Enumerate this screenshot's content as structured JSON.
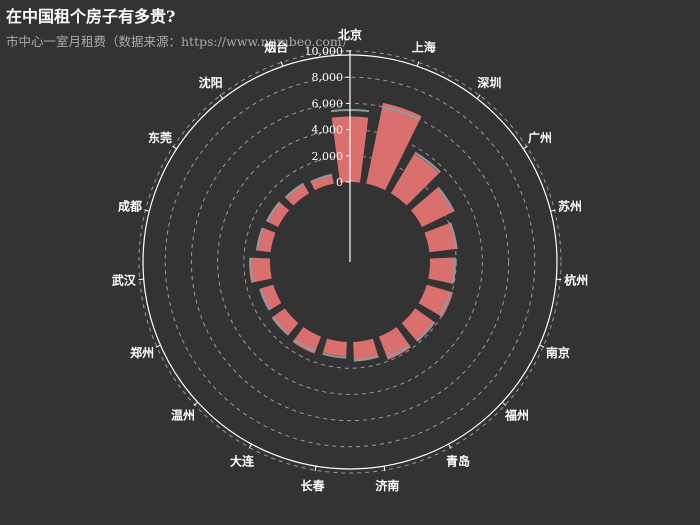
{
  "chart_data": {
    "type": "bar",
    "title": "在中国租个房子有多贵?",
    "subtitle": "市中心一室月租费（数据来源：https://www.numbeo.com）",
    "categories": [
      "北京",
      "上海",
      "深圳",
      "广州",
      "苏州",
      "杭州",
      "南京",
      "福州",
      "青岛",
      "济南",
      "长春",
      "大连",
      "温州",
      "郑州",
      "武汉",
      "成都",
      "东莞",
      "沈阳",
      "烟台"
    ],
    "values": [
      5000,
      6300,
      3500,
      2700,
      2100,
      1900,
      2100,
      1800,
      1900,
      1500,
      1100,
      1400,
      1250,
      1050,
      1600,
      1050,
      1000,
      900,
      700
    ],
    "marker_values": [
      5500,
      6000,
      3600,
      2700,
      2100,
      1900,
      1900,
      1800,
      1700,
      1400,
      1200,
      1200,
      1150,
      1050,
      1450,
      1050,
      950,
      850,
      700
    ],
    "ylim": [
      0,
      10000
    ],
    "yticks": [
      "0",
      "2,000",
      "4,000",
      "6,000",
      "8,000",
      "10,000"
    ],
    "bar_color": "#d9706e",
    "marker_color": "#8e9aa3",
    "background": "#333333"
  }
}
